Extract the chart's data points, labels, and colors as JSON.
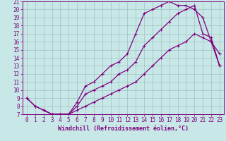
{
  "xlabel": "Windchill (Refroidissement éolien,°C)",
  "background_color": "#c8e8e8",
  "grid_color": "#a0c0c0",
  "line_color": "#800080",
  "spine_color": "#800080",
  "xlim": [
    -0.5,
    23.5
  ],
  "ylim": [
    7,
    21
  ],
  "xticks": [
    0,
    1,
    2,
    3,
    4,
    5,
    6,
    7,
    8,
    9,
    10,
    11,
    12,
    13,
    14,
    15,
    16,
    17,
    18,
    19,
    20,
    21,
    22,
    23
  ],
  "yticks": [
    7,
    8,
    9,
    10,
    11,
    12,
    13,
    14,
    15,
    16,
    17,
    18,
    19,
    20,
    21
  ],
  "curve1_x": [
    0,
    1,
    2,
    3,
    4,
    5,
    6,
    7,
    8,
    9,
    10,
    11,
    12,
    13,
    14,
    15,
    16,
    17,
    18,
    19,
    20,
    21,
    22,
    23
  ],
  "curve1_y": [
    9.0,
    8.0,
    7.5,
    7.0,
    7.0,
    7.0,
    8.5,
    10.5,
    11.0,
    12.0,
    13.0,
    13.5,
    14.5,
    17.0,
    19.5,
    20.0,
    20.5,
    21.0,
    20.5,
    20.5,
    20.0,
    19.0,
    16.0,
    14.5
  ],
  "curve2_x": [
    0,
    1,
    2,
    3,
    4,
    5,
    6,
    7,
    8,
    9,
    10,
    11,
    12,
    13,
    14,
    15,
    16,
    17,
    18,
    19,
    20,
    21,
    22,
    23
  ],
  "curve2_y": [
    9.0,
    8.0,
    7.5,
    7.0,
    7.0,
    7.0,
    8.0,
    9.5,
    10.0,
    10.5,
    11.0,
    12.0,
    12.5,
    13.5,
    15.5,
    16.5,
    17.5,
    18.5,
    19.5,
    20.0,
    20.5,
    17.0,
    16.5,
    13.0
  ],
  "curve3_x": [
    2,
    3,
    4,
    5,
    6,
    7,
    8,
    9,
    10,
    11,
    12,
    13,
    14,
    15,
    16,
    17,
    18,
    19,
    20,
    21,
    22,
    23
  ],
  "curve3_y": [
    7.5,
    7.0,
    7.0,
    7.0,
    7.5,
    8.0,
    8.5,
    9.0,
    9.5,
    10.0,
    10.5,
    11.0,
    12.0,
    13.0,
    14.0,
    15.0,
    15.5,
    16.0,
    17.0,
    16.5,
    16.0,
    13.0
  ],
  "tick_fontsize": 5.5,
  "xlabel_fontsize": 6,
  "marker_size": 3,
  "line_width": 0.9
}
